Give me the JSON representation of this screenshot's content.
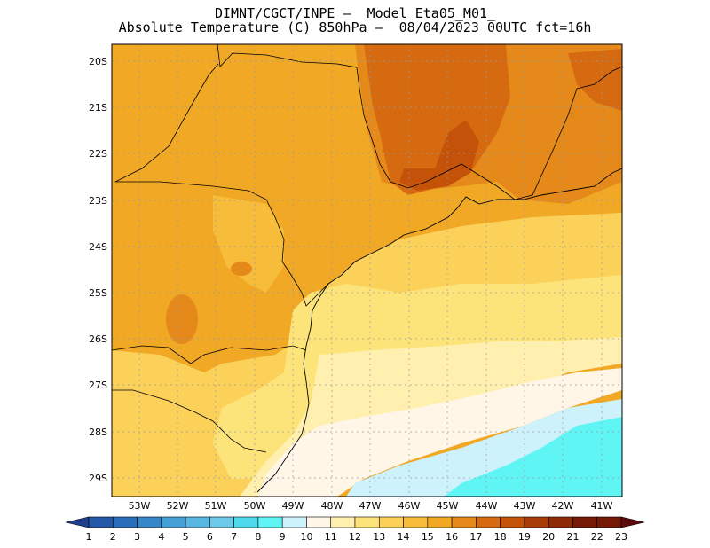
{
  "header": {
    "line1": "DIMNT/CGCT/INPE –  Model Eta05_M01_",
    "line2": "Absolute Temperature (C) 850hPa –  08/04/2023 00UTC fct=16h"
  },
  "map": {
    "lat_labels": [
      "20S",
      "21S",
      "22S",
      "23S",
      "24S",
      "25S",
      "26S",
      "27S",
      "28S",
      "29S"
    ],
    "lon_labels": [
      "53W",
      "52W",
      "51W",
      "50W",
      "49W",
      "48W",
      "47W",
      "46W",
      "45W",
      "44W",
      "43W",
      "42W",
      "41W"
    ],
    "features": [
      "state-borders",
      "coastline",
      "ocean-shelf-cold",
      "warm-core-south-minas"
    ]
  },
  "colorbar": {
    "labels": [
      "1",
      "2",
      "3",
      "4",
      "5",
      "6",
      "7",
      "8",
      "9",
      "10",
      "11",
      "12",
      "13",
      "14",
      "15",
      "16",
      "17",
      "18",
      "19",
      "20",
      "21",
      "22",
      "23"
    ],
    "colors": [
      "#1f3f8f",
      "#2457a5",
      "#2a6db8",
      "#3587c8",
      "#45a0d6",
      "#58b6e0",
      "#6cc9e8",
      "#4dd8ec",
      "#5ff5f5",
      "#cdf2fb",
      "#fff6e8",
      "#fff0b0",
      "#fde47a",
      "#fbd15a",
      "#f7bd3a",
      "#f0a825",
      "#e5891a",
      "#d66a10",
      "#c45208",
      "#a83c08",
      "#8e2a08",
      "#761a08",
      "#5e0a0a"
    ]
  }
}
